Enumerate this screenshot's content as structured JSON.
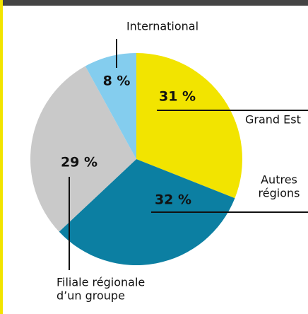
{
  "chart_data": {
    "type": "pie",
    "categories": [
      [
        "Grand Est"
      ],
      [
        "Autres",
        "régions"
      ],
      [
        "Filiale régionale",
        "d’un groupe"
      ],
      [
        "International"
      ]
    ],
    "values": [
      31,
      32,
      29,
      8
    ],
    "value_labels": [
      "31 %",
      "32 %",
      "29 %",
      "8 %"
    ],
    "colors": [
      "#f2e400",
      "#0c7fa2",
      "#c9c9c9",
      "#84cdee"
    ]
  }
}
